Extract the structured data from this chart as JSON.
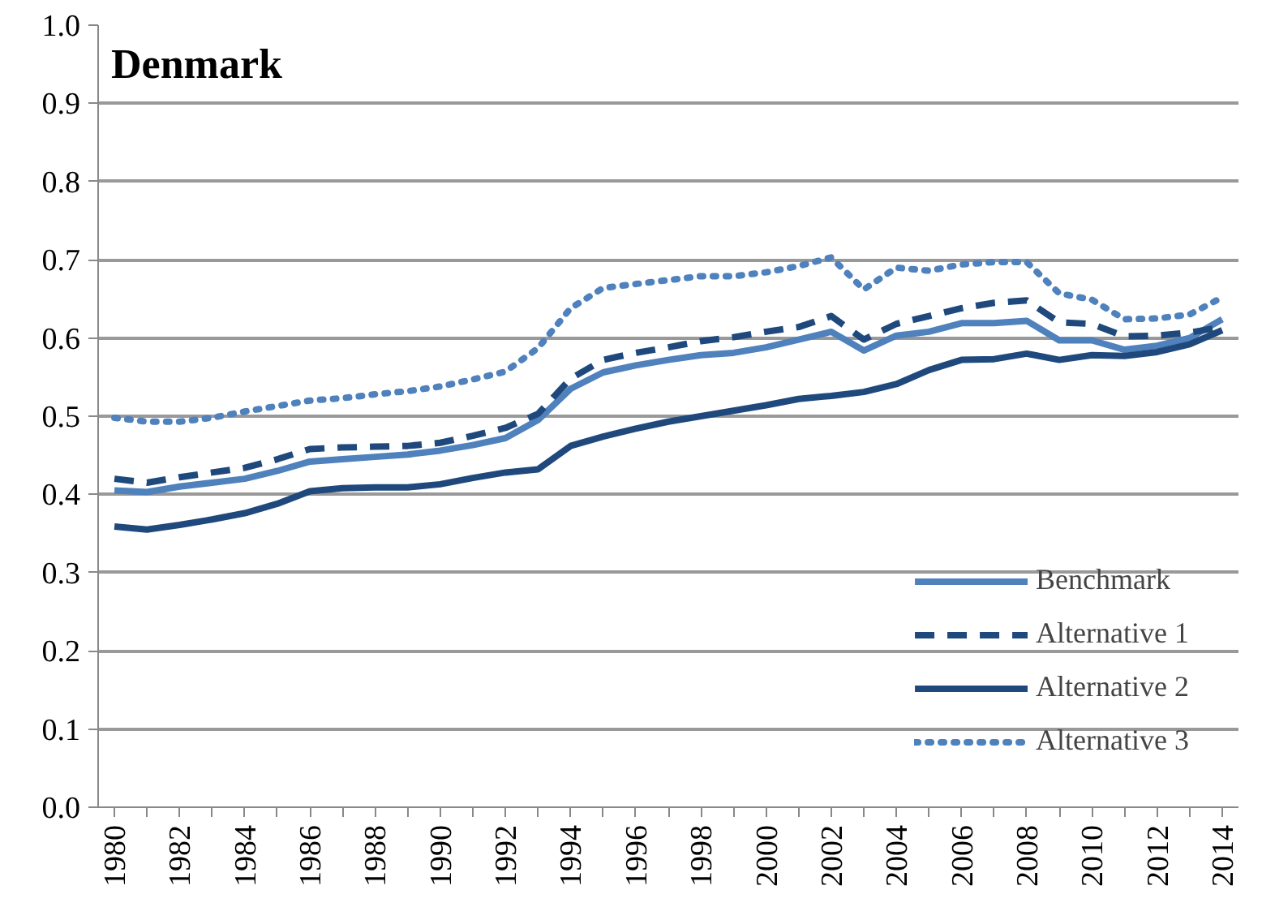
{
  "chart_data": {
    "type": "line",
    "title": "Denmark",
    "categories": [
      "1980",
      null,
      "1982",
      null,
      "1984",
      null,
      "1986",
      null,
      "1988",
      null,
      "1990",
      null,
      "1992",
      null,
      "1994",
      null,
      "1996",
      null,
      "1998",
      null,
      "2000",
      null,
      "2002",
      null,
      "2004",
      null,
      "2006",
      null,
      "2008",
      null,
      "2010",
      null,
      "2012",
      null,
      "2014"
    ],
    "ylim": [
      0,
      1
    ],
    "yticks": [
      {
        "value": 0,
        "label": "0.0"
      },
      0.1,
      0.2,
      0.3,
      0.4,
      0.5,
      0.6,
      0.7,
      0.8,
      0.9,
      {
        "value": 1,
        "label": "1.0"
      }
    ],
    "grid": "y",
    "legend": "bottom right",
    "series": [
      {
        "name": "Benchmark",
        "color": "#4f81bd",
        "line_style": "solid",
        "values": [
          0.405,
          0.403,
          0.41,
          0.415,
          0.42,
          0.43,
          0.442,
          0.445,
          0.448,
          0.451,
          0.456,
          0.463,
          0.472,
          0.495,
          0.535,
          0.556,
          0.565,
          0.572,
          0.578,
          0.581,
          0.588,
          0.598,
          0.608,
          0.584,
          0.603,
          0.608,
          0.619,
          0.619,
          0.622,
          0.597,
          0.597,
          0.585,
          0.59,
          0.6,
          0.624
        ]
      },
      {
        "name": "Alternative 1",
        "color": "#1f497d",
        "line_style": "dashed",
        "values": [
          0.42,
          0.415,
          0.422,
          0.428,
          0.434,
          0.445,
          0.458,
          0.46,
          0.461,
          0.462,
          0.466,
          0.475,
          0.485,
          0.503,
          0.548,
          0.572,
          0.581,
          0.588,
          0.596,
          0.601,
          0.608,
          0.614,
          0.628,
          0.598,
          0.618,
          0.628,
          0.638,
          0.645,
          0.648,
          0.62,
          0.618,
          0.602,
          0.603,
          0.607,
          0.614
        ]
      },
      {
        "name": "Alternative 2",
        "color": "#1f497d",
        "line_style": "solid",
        "values": [
          0.359,
          0.355,
          0.361,
          0.368,
          0.376,
          0.388,
          0.404,
          0.408,
          0.409,
          0.409,
          0.413,
          0.421,
          0.428,
          0.432,
          0.462,
          0.474,
          0.484,
          0.493,
          0.5,
          0.507,
          0.514,
          0.522,
          0.526,
          0.531,
          0.541,
          0.559,
          0.572,
          0.573,
          0.58,
          0.572,
          0.578,
          0.577,
          0.582,
          0.592,
          0.61
        ]
      },
      {
        "name": "Alternative 3",
        "color": "#4f81bd",
        "line_style": "dotted",
        "values": [
          0.498,
          0.493,
          0.493,
          0.498,
          0.506,
          0.513,
          0.52,
          0.523,
          0.528,
          0.532,
          0.538,
          0.547,
          0.557,
          0.587,
          0.638,
          0.664,
          0.669,
          0.674,
          0.679,
          0.679,
          0.684,
          0.692,
          0.703,
          0.662,
          0.69,
          0.686,
          0.694,
          0.697,
          0.697,
          0.657,
          0.649,
          0.624,
          0.625,
          0.63,
          0.652
        ]
      }
    ]
  }
}
